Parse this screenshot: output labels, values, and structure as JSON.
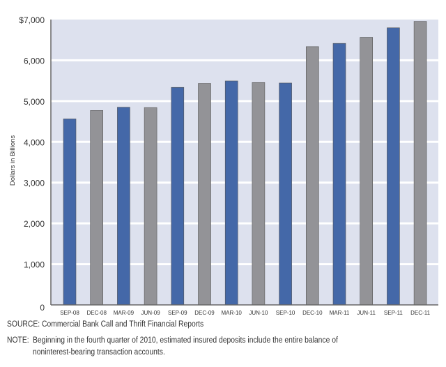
{
  "chart_data": {
    "type": "bar",
    "title": "",
    "xlabel": "",
    "ylabel": "Dollars in Billions",
    "ylim": [
      0,
      7000
    ],
    "yticks": [
      "0",
      "1,000",
      "2,000",
      "3,000",
      "4,000",
      "5,000",
      "6,000",
      "$7,000"
    ],
    "grid": true,
    "categories": [
      "SEP-08",
      "DEC-08",
      "MAR-09",
      "JUN-09",
      "SEP-09",
      "DEC-09",
      "MAR-10",
      "JUN-10",
      "SEP-10",
      "DEC-10",
      "MAR-11",
      "JUN-11",
      "SEP-11",
      "DEC-11"
    ],
    "values": [
      4563,
      4770,
      4850,
      4840,
      5336,
      5433,
      5494,
      5455,
      5443,
      6335,
      6415,
      6563,
      6798,
      6955
    ],
    "colors": {
      "blue": "#4468a8",
      "gray": "#939397",
      "plot_background": "#dde1ee",
      "gridline": "#ffffff"
    }
  },
  "footer": {
    "source": "SOURCE: Commercial Bank Call and Thrift Financial Reports",
    "note_label": "NOTE:",
    "note_line1": "Beginning in the fourth quarter of 2010, estimated insured deposits include the entire balance of",
    "note_line2": "noninterest-bearing transaction accounts."
  }
}
